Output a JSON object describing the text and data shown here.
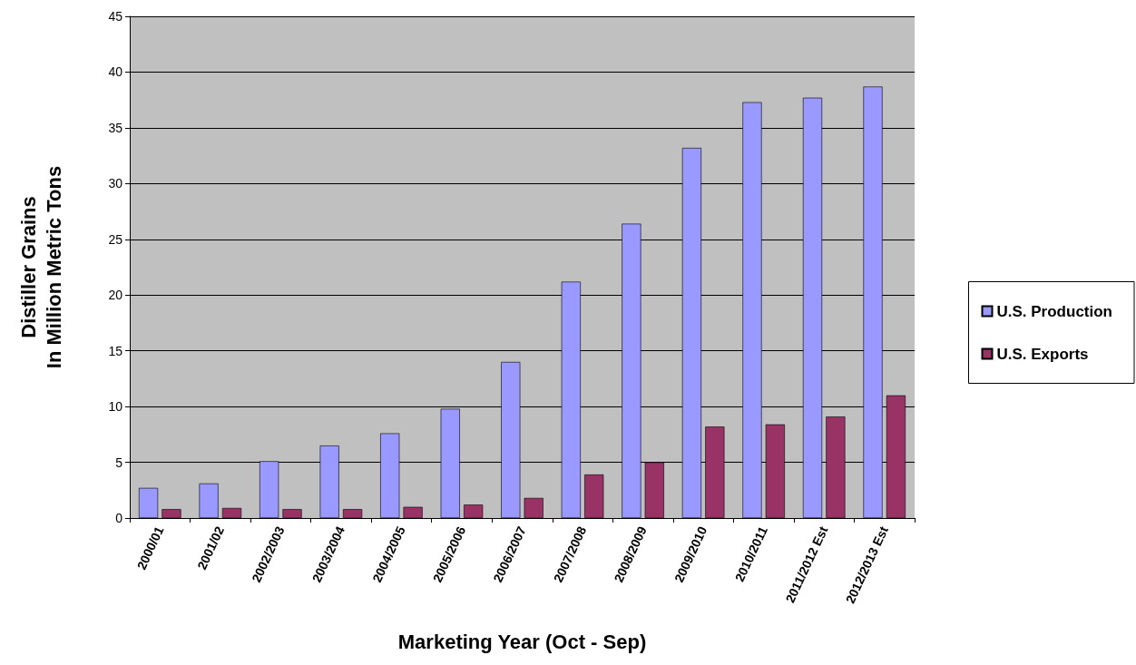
{
  "chart_data": {
    "type": "bar",
    "xlabel": "Marketing Year (Oct - Sep)",
    "ylabel": "Distiller Grains\nIn Million Metric Tons",
    "categories": [
      "2000/01",
      "2001/02",
      "2002/2003",
      "2003/2004",
      "2004/2005",
      "2005/2006",
      "2006/2007",
      "2007/2008",
      "2008/2009",
      "2009/2010",
      "2010/2011",
      "2011/2012 Est",
      "2012/2013 Est"
    ],
    "series": [
      {
        "name": "U.S. Production",
        "color": "#9999ff",
        "values": [
          2.7,
          3.1,
          5.1,
          6.5,
          7.6,
          9.8,
          14.0,
          21.2,
          26.4,
          33.2,
          37.3,
          37.7,
          38.7
        ]
      },
      {
        "name": "U.S. Exports",
        "color": "#993366",
        "values": [
          0.8,
          0.9,
          0.8,
          0.8,
          1.0,
          1.2,
          1.8,
          3.9,
          5.0,
          8.2,
          8.4,
          9.1,
          11.0
        ]
      }
    ],
    "ylim": [
      0,
      45
    ],
    "yticks": [
      0,
      5,
      10,
      15,
      20,
      25,
      30,
      35,
      40,
      45
    ],
    "grid": "y",
    "legend": "right"
  }
}
